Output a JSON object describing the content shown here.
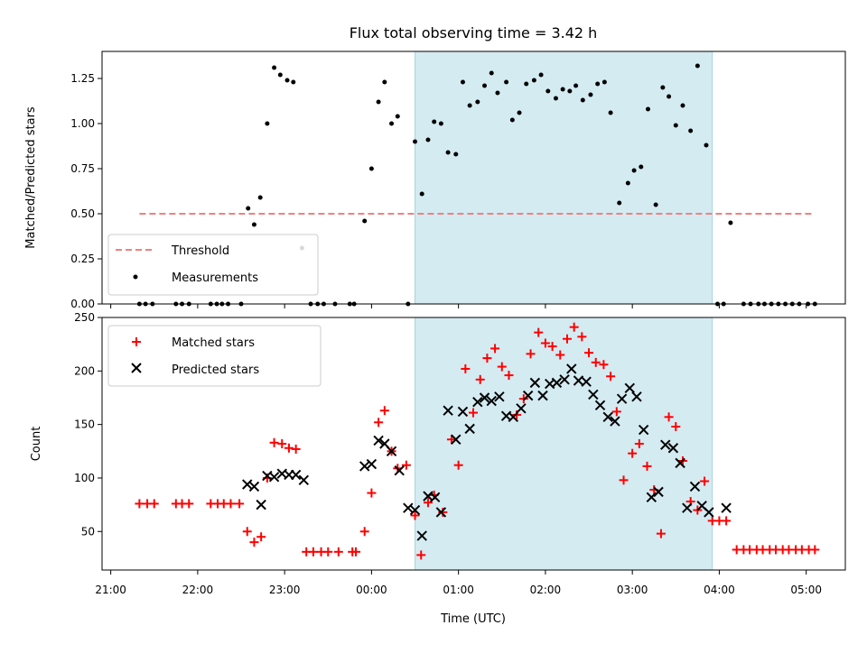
{
  "chart_data": {
    "type": "scatter",
    "title": "Flux total observing time = 3.42 h",
    "xlabel": "Time (UTC)",
    "x_ticks": [
      "21:00",
      "22:00",
      "23:00",
      "00:00",
      "01:00",
      "02:00",
      "03:00",
      "04:00",
      "05:00"
    ],
    "x_tick_hours": [
      0,
      1,
      2,
      3,
      4,
      5,
      6,
      7,
      8
    ],
    "xlim_hours": [
      -0.1,
      8.45
    ],
    "shaded_region_hours": [
      3.5,
      6.92
    ],
    "shade_color": "#d4ebf2",
    "top": {
      "ylabel": "Matched/Predicted stars",
      "ylim": [
        0,
        1.4
      ],
      "yticks": [
        "0.00",
        "0.25",
        "0.50",
        "0.75",
        "1.00",
        "1.25"
      ],
      "ytick_values": [
        0,
        0.25,
        0.5,
        0.75,
        1.0,
        1.25
      ],
      "threshold": {
        "name": "Threshold",
        "value": 0.5,
        "x_range_hours": [
          0.33,
          8.1
        ],
        "color": "#f08080"
      },
      "measurements": {
        "name": "Measurements",
        "color": "#000000",
        "points": [
          [
            0.33,
            0
          ],
          [
            0.4,
            0
          ],
          [
            0.48,
            0
          ],
          [
            0.75,
            0
          ],
          [
            0.82,
            0
          ],
          [
            0.9,
            0
          ],
          [
            1.15,
            0
          ],
          [
            1.22,
            0
          ],
          [
            1.28,
            0
          ],
          [
            1.35,
            0
          ],
          [
            1.5,
            0
          ],
          [
            1.58,
            0.53
          ],
          [
            1.65,
            0.44
          ],
          [
            1.72,
            0.59
          ],
          [
            1.8,
            1.0
          ],
          [
            1.88,
            1.31
          ],
          [
            1.95,
            1.27
          ],
          [
            2.03,
            1.24
          ],
          [
            2.1,
            1.23
          ],
          [
            2.2,
            0.31
          ],
          [
            2.3,
            0
          ],
          [
            2.38,
            0
          ],
          [
            2.45,
            0
          ],
          [
            2.58,
            0
          ],
          [
            2.75,
            0
          ],
          [
            2.8,
            0
          ],
          [
            2.92,
            0.46
          ],
          [
            3.0,
            0.75
          ],
          [
            3.08,
            1.12
          ],
          [
            3.15,
            1.23
          ],
          [
            3.23,
            1.0
          ],
          [
            3.3,
            1.04
          ],
          [
            3.42,
            0
          ],
          [
            3.5,
            0.9
          ],
          [
            3.58,
            0.61
          ],
          [
            3.65,
            0.91
          ],
          [
            3.72,
            1.01
          ],
          [
            3.8,
            1.0
          ],
          [
            3.88,
            0.84
          ],
          [
            3.97,
            0.83
          ],
          [
            4.05,
            1.23
          ],
          [
            4.13,
            1.1
          ],
          [
            4.22,
            1.12
          ],
          [
            4.3,
            1.21
          ],
          [
            4.38,
            1.28
          ],
          [
            4.45,
            1.17
          ],
          [
            4.55,
            1.23
          ],
          [
            4.62,
            1.02
          ],
          [
            4.7,
            1.06
          ],
          [
            4.78,
            1.22
          ],
          [
            4.87,
            1.24
          ],
          [
            4.95,
            1.27
          ],
          [
            5.03,
            1.18
          ],
          [
            5.12,
            1.14
          ],
          [
            5.2,
            1.19
          ],
          [
            5.28,
            1.18
          ],
          [
            5.35,
            1.21
          ],
          [
            5.43,
            1.13
          ],
          [
            5.52,
            1.16
          ],
          [
            5.6,
            1.22
          ],
          [
            5.68,
            1.23
          ],
          [
            5.75,
            1.06
          ],
          [
            5.85,
            0.56
          ],
          [
            5.95,
            0.67
          ],
          [
            6.02,
            0.74
          ],
          [
            6.1,
            0.76
          ],
          [
            6.18,
            1.08
          ],
          [
            6.27,
            0.55
          ],
          [
            6.35,
            1.2
          ],
          [
            6.42,
            1.15
          ],
          [
            6.5,
            0.99
          ],
          [
            6.58,
            1.1
          ],
          [
            6.67,
            0.96
          ],
          [
            6.75,
            1.32
          ],
          [
            6.85,
            0.88
          ],
          [
            6.98,
            0
          ],
          [
            7.05,
            0
          ],
          [
            7.13,
            0.45
          ],
          [
            7.28,
            0
          ],
          [
            7.36,
            0
          ],
          [
            7.45,
            0
          ],
          [
            7.52,
            0
          ],
          [
            7.6,
            0
          ],
          [
            7.68,
            0
          ],
          [
            7.76,
            0
          ],
          [
            7.84,
            0
          ],
          [
            7.92,
            0
          ],
          [
            8.02,
            0
          ],
          [
            8.1,
            0
          ]
        ]
      }
    },
    "bottom": {
      "ylabel": "Count",
      "ylim": [
        14,
        250
      ],
      "yticks": [
        "50",
        "100",
        "150",
        "200",
        "250"
      ],
      "ytick_values": [
        50,
        100,
        150,
        200,
        250
      ],
      "matched": {
        "name": "Matched stars",
        "color": "#ff0000",
        "points": [
          [
            0.33,
            76
          ],
          [
            0.42,
            76
          ],
          [
            0.5,
            76
          ],
          [
            0.75,
            76
          ],
          [
            0.82,
            76
          ],
          [
            0.9,
            76
          ],
          [
            1.15,
            76
          ],
          [
            1.23,
            76
          ],
          [
            1.3,
            76
          ],
          [
            1.38,
            76
          ],
          [
            1.48,
            76
          ],
          [
            1.57,
            50
          ],
          [
            1.65,
            40
          ],
          [
            1.73,
            45
          ],
          [
            1.8,
            100
          ],
          [
            1.88,
            133
          ],
          [
            1.97,
            132
          ],
          [
            2.05,
            128
          ],
          [
            2.13,
            127
          ],
          [
            2.25,
            31
          ],
          [
            2.33,
            31
          ],
          [
            2.42,
            31
          ],
          [
            2.5,
            31
          ],
          [
            2.62,
            31
          ],
          [
            2.78,
            31
          ],
          [
            2.82,
            31
          ],
          [
            2.92,
            50
          ],
          [
            3.0,
            86
          ],
          [
            3.08,
            152
          ],
          [
            3.15,
            163
          ],
          [
            3.23,
            125
          ],
          [
            3.3,
            109
          ],
          [
            3.4,
            112
          ],
          [
            3.5,
            65
          ],
          [
            3.57,
            28
          ],
          [
            3.65,
            77
          ],
          [
            3.72,
            84
          ],
          [
            3.82,
            68
          ],
          [
            3.92,
            136
          ],
          [
            4.0,
            112
          ],
          [
            4.08,
            202
          ],
          [
            4.17,
            161
          ],
          [
            4.25,
            192
          ],
          [
            4.33,
            212
          ],
          [
            4.42,
            221
          ],
          [
            4.5,
            204
          ],
          [
            4.58,
            196
          ],
          [
            4.67,
            159
          ],
          [
            4.75,
            174
          ],
          [
            4.83,
            216
          ],
          [
            4.92,
            236
          ],
          [
            5.0,
            226
          ],
          [
            5.08,
            223
          ],
          [
            5.17,
            215
          ],
          [
            5.25,
            230
          ],
          [
            5.33,
            241
          ],
          [
            5.42,
            232
          ],
          [
            5.5,
            217
          ],
          [
            5.58,
            208
          ],
          [
            5.67,
            206
          ],
          [
            5.75,
            195
          ],
          [
            5.82,
            162
          ],
          [
            5.9,
            98
          ],
          [
            6.0,
            123
          ],
          [
            6.08,
            132
          ],
          [
            6.17,
            111
          ],
          [
            6.25,
            89
          ],
          [
            6.33,
            48
          ],
          [
            6.42,
            157
          ],
          [
            6.5,
            148
          ],
          [
            6.58,
            116
          ],
          [
            6.67,
            78
          ],
          [
            6.75,
            70
          ],
          [
            6.83,
            97
          ],
          [
            6.92,
            60
          ],
          [
            7.0,
            60
          ],
          [
            7.08,
            60
          ],
          [
            7.2,
            33
          ],
          [
            7.28,
            33
          ],
          [
            7.35,
            33
          ],
          [
            7.43,
            33
          ],
          [
            7.5,
            33
          ],
          [
            7.58,
            33
          ],
          [
            7.65,
            33
          ],
          [
            7.73,
            33
          ],
          [
            7.8,
            33
          ],
          [
            7.88,
            33
          ],
          [
            7.95,
            33
          ],
          [
            8.03,
            33
          ],
          [
            8.1,
            33
          ]
        ]
      },
      "predicted": {
        "name": "Predicted stars",
        "color": "#000000",
        "points": [
          [
            1.57,
            94
          ],
          [
            1.65,
            92
          ],
          [
            1.73,
            75
          ],
          [
            1.8,
            102
          ],
          [
            1.88,
            101
          ],
          [
            1.97,
            104
          ],
          [
            2.05,
            103
          ],
          [
            2.13,
            103
          ],
          [
            2.22,
            98
          ],
          [
            2.92,
            111
          ],
          [
            3.0,
            113
          ],
          [
            3.08,
            135
          ],
          [
            3.15,
            132
          ],
          [
            3.23,
            125
          ],
          [
            3.32,
            107
          ],
          [
            3.42,
            72
          ],
          [
            3.5,
            70
          ],
          [
            3.58,
            46
          ],
          [
            3.65,
            83
          ],
          [
            3.73,
            82
          ],
          [
            3.8,
            68
          ],
          [
            3.88,
            163
          ],
          [
            3.97,
            136
          ],
          [
            4.05,
            162
          ],
          [
            4.13,
            146
          ],
          [
            4.22,
            171
          ],
          [
            4.3,
            175
          ],
          [
            4.38,
            172
          ],
          [
            4.47,
            176
          ],
          [
            4.55,
            158
          ],
          [
            4.63,
            157
          ],
          [
            4.72,
            165
          ],
          [
            4.8,
            177
          ],
          [
            4.88,
            189
          ],
          [
            4.97,
            177
          ],
          [
            5.05,
            188
          ],
          [
            5.13,
            189
          ],
          [
            5.22,
            192
          ],
          [
            5.3,
            202
          ],
          [
            5.38,
            191
          ],
          [
            5.47,
            190
          ],
          [
            5.55,
            178
          ],
          [
            5.63,
            168
          ],
          [
            5.72,
            157
          ],
          [
            5.8,
            153
          ],
          [
            5.88,
            174
          ],
          [
            5.97,
            184
          ],
          [
            6.05,
            176
          ],
          [
            6.13,
            145
          ],
          [
            6.22,
            82
          ],
          [
            6.3,
            87
          ],
          [
            6.38,
            131
          ],
          [
            6.47,
            128
          ],
          [
            6.55,
            114
          ],
          [
            6.63,
            72
          ],
          [
            6.72,
            92
          ],
          [
            6.8,
            74
          ],
          [
            6.88,
            68
          ],
          [
            7.08,
            72
          ]
        ]
      }
    }
  }
}
